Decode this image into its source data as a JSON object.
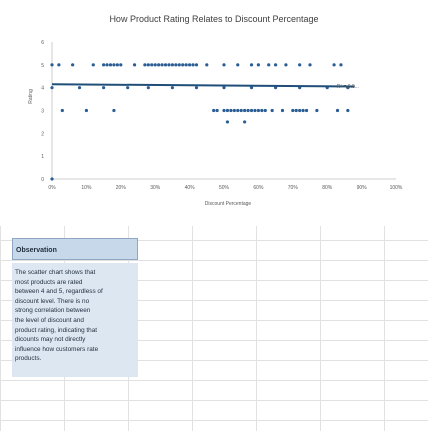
{
  "chart_data": {
    "type": "scatter",
    "title": "How Product Rating Relates to Discount Percentage",
    "xlabel": "Discount Percentage",
    "ylabel": "Rating",
    "xlim": [
      0,
      1
    ],
    "ylim": [
      0,
      6
    ],
    "x_ticks": [
      "0%",
      "10%",
      "20%",
      "30%",
      "40%",
      "50%",
      "60%",
      "70%",
      "80%",
      "90%",
      "100%"
    ],
    "y_ticks": [
      "0",
      "1",
      "2",
      "3",
      "4",
      "5",
      "6"
    ],
    "grid": false,
    "legend": "none",
    "trendline": {
      "label": "R² = 0.0...",
      "y_start": 4.15,
      "y_end": 4.05
    },
    "points": [
      {
        "x": 0.0,
        "y": 5
      },
      {
        "x": 0.02,
        "y": 5
      },
      {
        "x": 0.06,
        "y": 5
      },
      {
        "x": 0.12,
        "y": 5
      },
      {
        "x": 0.15,
        "y": 5
      },
      {
        "x": 0.16,
        "y": 5
      },
      {
        "x": 0.17,
        "y": 5
      },
      {
        "x": 0.18,
        "y": 5
      },
      {
        "x": 0.19,
        "y": 5
      },
      {
        "x": 0.2,
        "y": 5
      },
      {
        "x": 0.24,
        "y": 5
      },
      {
        "x": 0.27,
        "y": 5
      },
      {
        "x": 0.28,
        "y": 5
      },
      {
        "x": 0.29,
        "y": 5
      },
      {
        "x": 0.3,
        "y": 5
      },
      {
        "x": 0.31,
        "y": 5
      },
      {
        "x": 0.32,
        "y": 5
      },
      {
        "x": 0.33,
        "y": 5
      },
      {
        "x": 0.34,
        "y": 5
      },
      {
        "x": 0.35,
        "y": 5
      },
      {
        "x": 0.36,
        "y": 5
      },
      {
        "x": 0.37,
        "y": 5
      },
      {
        "x": 0.38,
        "y": 5
      },
      {
        "x": 0.39,
        "y": 5
      },
      {
        "x": 0.4,
        "y": 5
      },
      {
        "x": 0.41,
        "y": 5
      },
      {
        "x": 0.42,
        "y": 5
      },
      {
        "x": 0.45,
        "y": 5
      },
      {
        "x": 0.5,
        "y": 5
      },
      {
        "x": 0.54,
        "y": 5
      },
      {
        "x": 0.58,
        "y": 5
      },
      {
        "x": 0.6,
        "y": 5
      },
      {
        "x": 0.63,
        "y": 5
      },
      {
        "x": 0.65,
        "y": 5
      },
      {
        "x": 0.68,
        "y": 5
      },
      {
        "x": 0.72,
        "y": 5
      },
      {
        "x": 0.75,
        "y": 5
      },
      {
        "x": 0.82,
        "y": 5
      },
      {
        "x": 0.84,
        "y": 5
      },
      {
        "x": 0.0,
        "y": 4
      },
      {
        "x": 0.08,
        "y": 4
      },
      {
        "x": 0.15,
        "y": 4
      },
      {
        "x": 0.22,
        "y": 4
      },
      {
        "x": 0.28,
        "y": 4
      },
      {
        "x": 0.35,
        "y": 4
      },
      {
        "x": 0.42,
        "y": 4
      },
      {
        "x": 0.5,
        "y": 4
      },
      {
        "x": 0.58,
        "y": 4
      },
      {
        "x": 0.65,
        "y": 4
      },
      {
        "x": 0.72,
        "y": 4
      },
      {
        "x": 0.8,
        "y": 4
      },
      {
        "x": 0.86,
        "y": 4
      },
      {
        "x": 0.03,
        "y": 3
      },
      {
        "x": 0.1,
        "y": 3
      },
      {
        "x": 0.18,
        "y": 3
      },
      {
        "x": 0.47,
        "y": 3
      },
      {
        "x": 0.48,
        "y": 3
      },
      {
        "x": 0.5,
        "y": 3
      },
      {
        "x": 0.51,
        "y": 3
      },
      {
        "x": 0.52,
        "y": 3
      },
      {
        "x": 0.53,
        "y": 3
      },
      {
        "x": 0.54,
        "y": 3
      },
      {
        "x": 0.55,
        "y": 3
      },
      {
        "x": 0.56,
        "y": 3
      },
      {
        "x": 0.57,
        "y": 3
      },
      {
        "x": 0.58,
        "y": 3
      },
      {
        "x": 0.59,
        "y": 3
      },
      {
        "x": 0.6,
        "y": 3
      },
      {
        "x": 0.61,
        "y": 3
      },
      {
        "x": 0.62,
        "y": 3
      },
      {
        "x": 0.64,
        "y": 3
      },
      {
        "x": 0.67,
        "y": 3
      },
      {
        "x": 0.7,
        "y": 3
      },
      {
        "x": 0.71,
        "y": 3
      },
      {
        "x": 0.72,
        "y": 3
      },
      {
        "x": 0.73,
        "y": 3
      },
      {
        "x": 0.74,
        "y": 3
      },
      {
        "x": 0.77,
        "y": 3
      },
      {
        "x": 0.83,
        "y": 3
      },
      {
        "x": 0.86,
        "y": 3
      },
      {
        "x": 0.51,
        "y": 2.5
      },
      {
        "x": 0.56,
        "y": 2.5
      },
      {
        "x": 0.0,
        "y": 0
      }
    ]
  },
  "observation": {
    "header": "Observation",
    "lines": [
      "The scatter chart shows that",
      "most products are rated",
      "between 4 and 5, regardless of",
      "discount level. There is no",
      "strong correlation between",
      "the level of discount and",
      "product rating, indicating that",
      "dicounts may not directly",
      "influence how customers rate",
      "products."
    ]
  },
  "colors": {
    "marker": "#2a5d94",
    "trendline": "#1f4e79",
    "axis": "#bfbfbf",
    "observation_header": "#c7d8ea",
    "observation_body": "#dde7f2"
  }
}
